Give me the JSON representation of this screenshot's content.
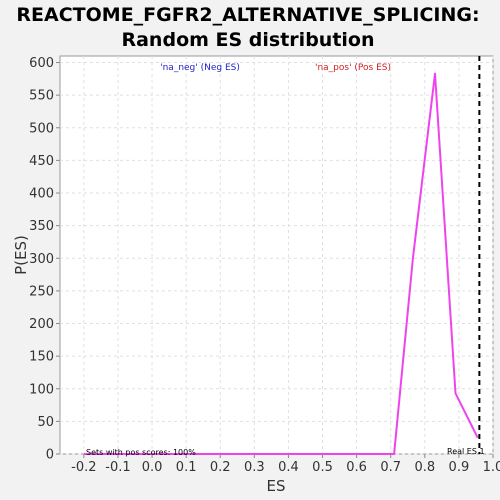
{
  "chart_data": {
    "type": "line",
    "title_line1": "REACTOME_FGFR2_ALTERNATIVE_SPLICING:",
    "title_line2": "Random ES distribution",
    "xlabel": "ES",
    "ylabel": "P(ES)",
    "xlim": [
      -0.27,
      1.0
    ],
    "ylim": [
      0,
      610
    ],
    "x_ticks": [
      -0.2,
      -0.1,
      0.0,
      0.1,
      0.2,
      0.3,
      0.4,
      0.5,
      0.6,
      0.7,
      0.8,
      0.9,
      1.0
    ],
    "x_tick_labels": [
      "-0.2",
      "-0.1",
      "0.0",
      "0.1",
      "0.2",
      "0.3",
      "0.4",
      "0.5",
      "0.6",
      "0.7",
      "0.8",
      "0.9",
      "1.0"
    ],
    "y_ticks": [
      0,
      50,
      100,
      150,
      200,
      250,
      300,
      350,
      400,
      450,
      500,
      550,
      600
    ],
    "y_tick_labels": [
      "0",
      "50",
      "100",
      "150",
      "200",
      "250",
      "300",
      "350",
      "400",
      "450",
      "500",
      "550",
      "600"
    ],
    "grid": true,
    "series": [
      {
        "color": "#ee44ee",
        "x": [
          -0.2,
          0.0,
          0.2,
          0.4,
          0.6,
          0.71,
          0.765,
          0.83,
          0.89,
          0.955
        ],
        "y": [
          0,
          0,
          0,
          0,
          0,
          0,
          300,
          583,
          93,
          25
        ]
      }
    ],
    "real_es": 0.96,
    "legend_neg": "'na_neg' (Neg ES)",
    "legend_pos": "'na_pos' (Pos ES)",
    "annotation_left": "Sets with pos scores: 100%",
    "annotation_right": "Real ES 1",
    "colors": {
      "line": "#ee44ee",
      "real_es_line": "#000000",
      "grid": "#e0e0e0",
      "plot_bg": "#ffffff",
      "page_bg": "#f2f2f2"
    }
  }
}
